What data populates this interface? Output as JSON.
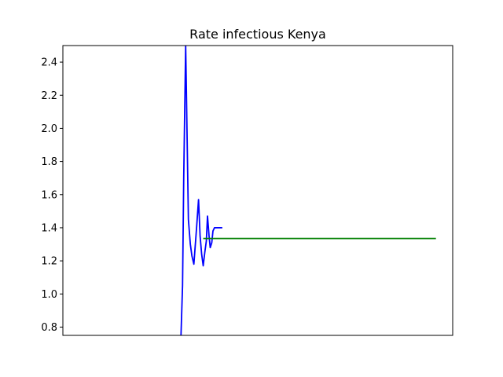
{
  "chart_data": {
    "type": "line",
    "title": "Rate infectious Kenya",
    "xlabel": "",
    "ylabel": "",
    "ylim": [
      0.75,
      2.5
    ],
    "xlim": [
      0,
      100
    ],
    "x_ticks_visible": false,
    "y_ticks": [
      0.8,
      1.0,
      1.2,
      1.4,
      1.6,
      1.8,
      2.0,
      2.2,
      2.4
    ],
    "y_tick_labels": [
      "0.8",
      "1.0",
      "1.2",
      "1.4",
      "1.6",
      "1.8",
      "2.0",
      "2.2",
      "2.4"
    ],
    "grid": false,
    "legend": "none",
    "series": [
      {
        "color": "#0000ff",
        "x": [
          30.3,
          30.7,
          31.0,
          31.5,
          32.2,
          32.7,
          33.1,
          33.6,
          34.3,
          34.8,
          35.2,
          35.6,
          36.0,
          36.4,
          36.8,
          37.1,
          37.5,
          37.8,
          38.2,
          38.5,
          38.9,
          39.3,
          39.7,
          40.1,
          40.5,
          40.9
        ],
        "y": [
          0.75,
          1.05,
          1.7,
          2.5,
          1.45,
          1.3,
          1.23,
          1.18,
          1.4,
          1.57,
          1.35,
          1.24,
          1.17,
          1.25,
          1.32,
          1.47,
          1.35,
          1.28,
          1.31,
          1.38,
          1.4,
          1.4,
          1.4,
          1.4,
          1.4,
          1.4
        ]
      },
      {
        "color": "#008000",
        "x": [
          36.0,
          95.7
        ],
        "y": [
          1.335,
          1.335
        ]
      }
    ]
  }
}
